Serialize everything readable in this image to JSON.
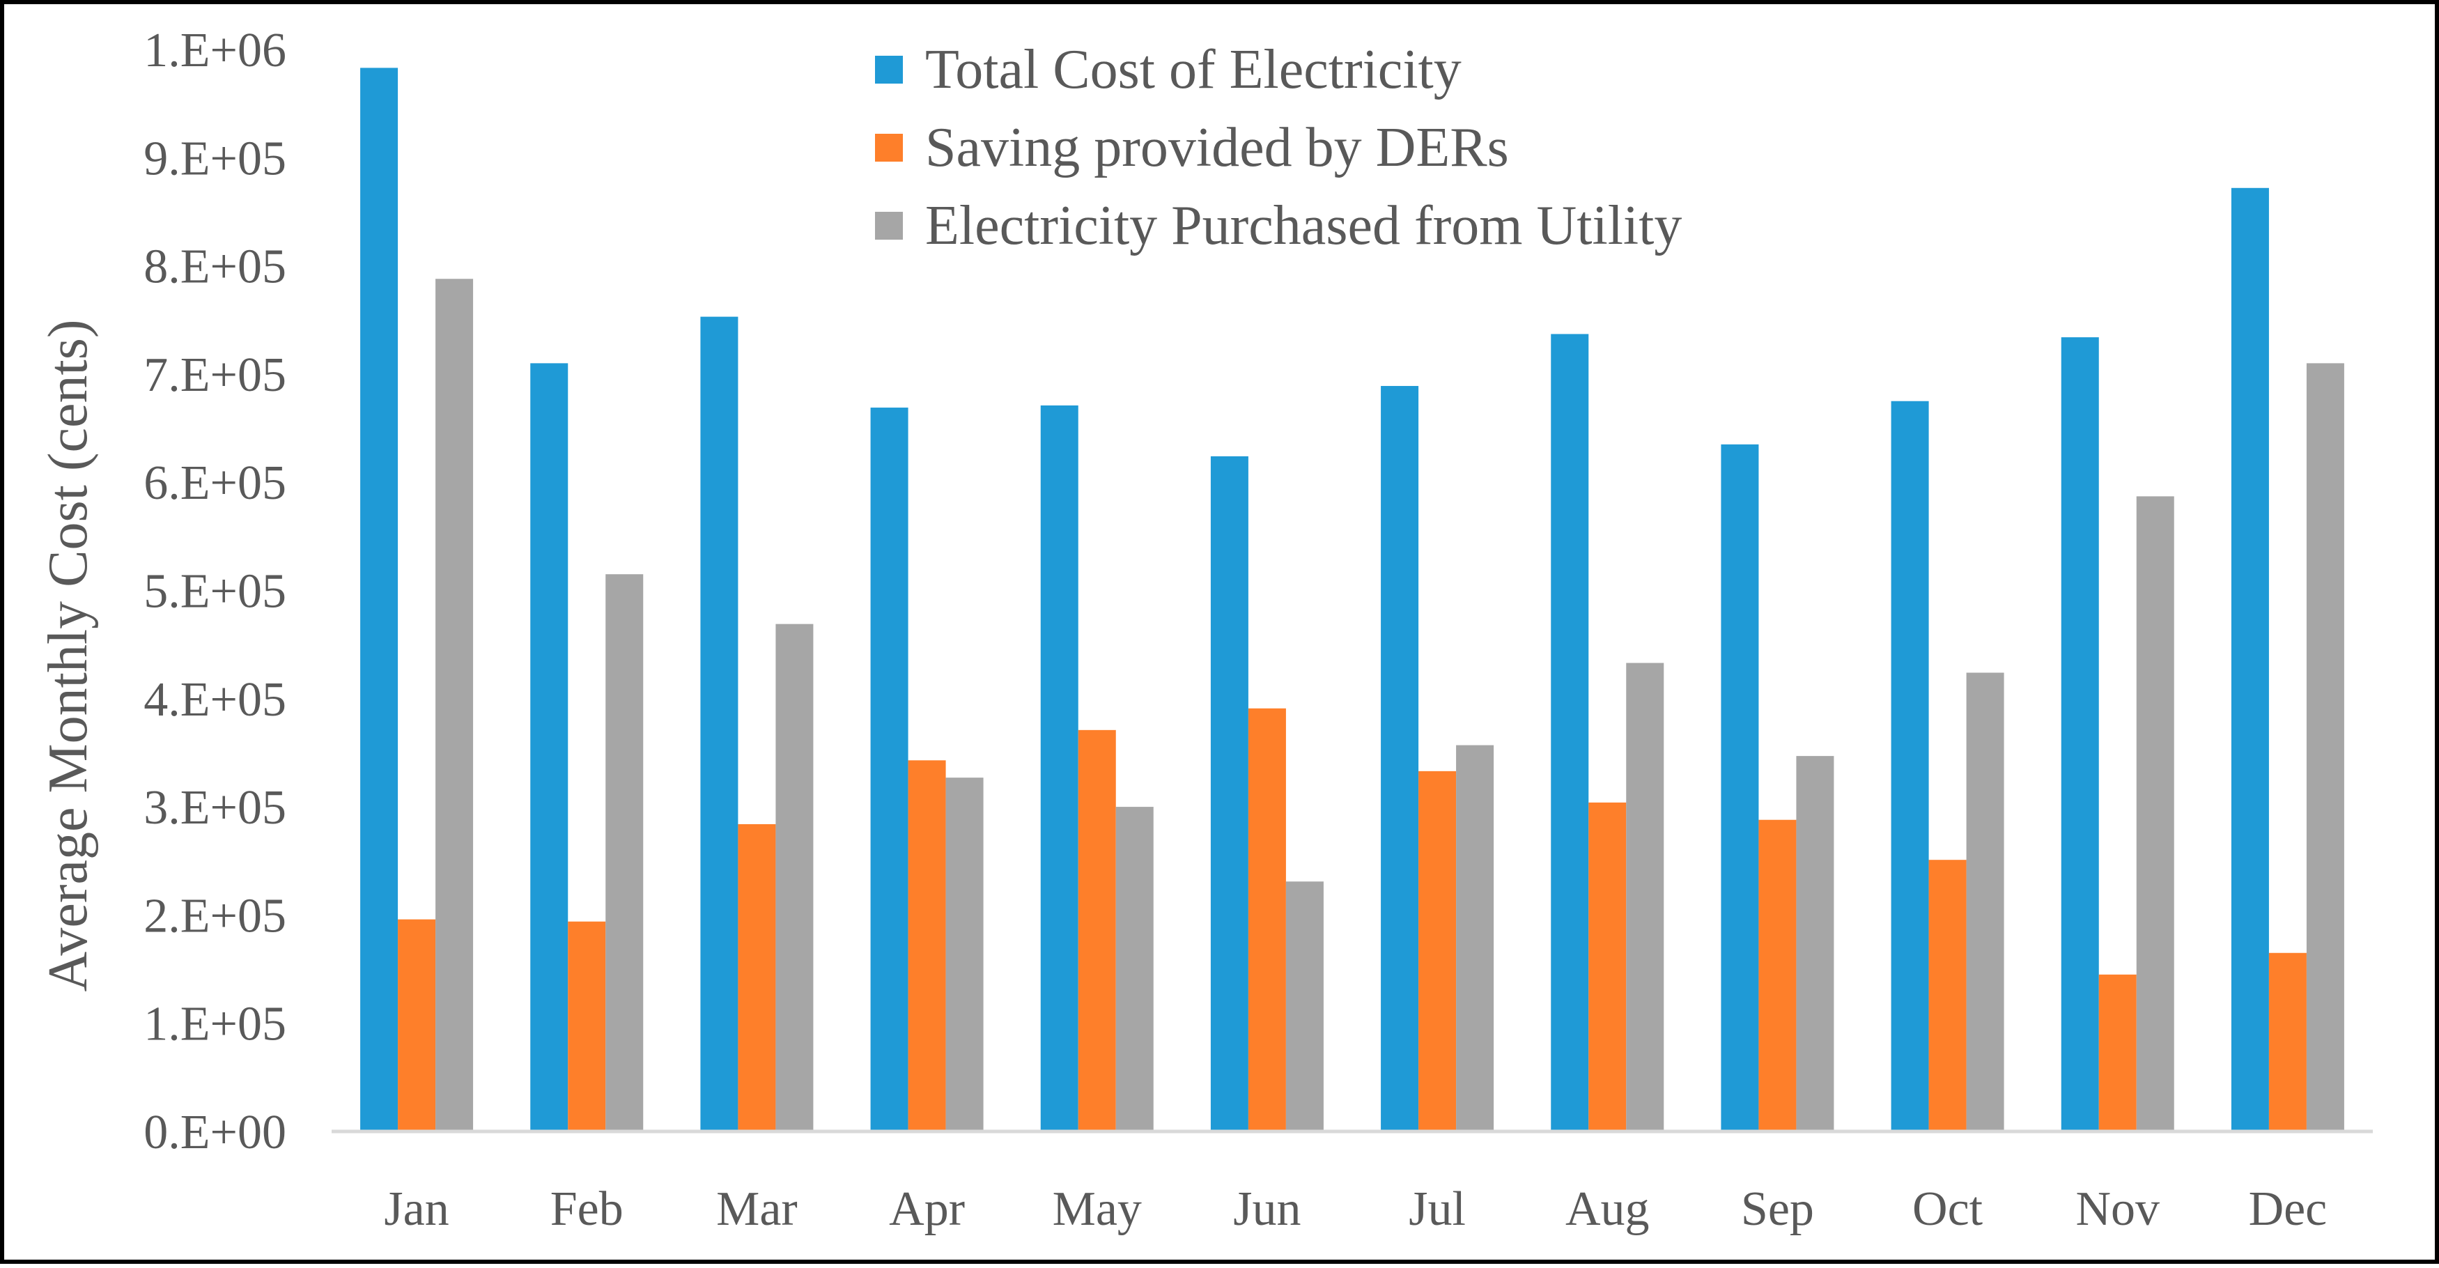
{
  "chart_data": {
    "type": "bar",
    "title": "",
    "xlabel": "",
    "ylabel": "Average Monthly Cost (cents)",
    "ylim": [
      0,
      1000000
    ],
    "yticks": [
      0,
      100000,
      200000,
      300000,
      400000,
      500000,
      600000,
      700000,
      800000,
      900000,
      1000000
    ],
    "ytick_labels": [
      "0.E+00",
      "1.E+05",
      "2.E+05",
      "3.E+05",
      "4.E+05",
      "5.E+05",
      "6.E+05",
      "7.E+05",
      "8.E+05",
      "9.E+05",
      "1.E+06"
    ],
    "grid": false,
    "legend_position": "top-center",
    "categories": [
      "Jan",
      "Feb",
      "Mar",
      "Apr",
      "May",
      "Jun",
      "Jul",
      "Aug",
      "Sep",
      "Oct",
      "Nov",
      "Dec"
    ],
    "series": [
      {
        "name": "Total Cost of Electricity",
        "color": "#1f9ad6",
        "values": [
          983000,
          710000,
          753000,
          669000,
          671000,
          624000,
          689000,
          737000,
          635000,
          675000,
          734000,
          872000
        ]
      },
      {
        "name": "Saving provided by DERs",
        "color": "#fe7f2a",
        "values": [
          196000,
          194000,
          284000,
          343000,
          371000,
          391000,
          333000,
          304000,
          288000,
          251000,
          145000,
          165000
        ]
      },
      {
        "name": "Electricity Purchased from Utility",
        "color": "#a6a6a6",
        "values": [
          788000,
          515000,
          469000,
          327000,
          300000,
          231000,
          357000,
          433000,
          347000,
          424000,
          587000,
          710000
        ]
      }
    ]
  }
}
